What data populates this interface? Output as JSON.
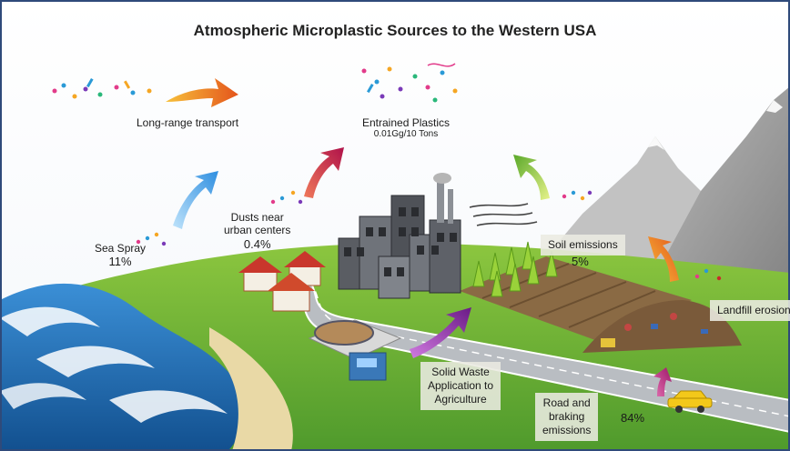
{
  "title": "Atmospheric Microplastic Sources to the Western USA",
  "labels": {
    "long_range": "Long-range transport",
    "entrained_title": "Entrained Plastics",
    "entrained_amount": "0.01Gg/10 Tons",
    "dusts_line1": "Dusts near",
    "dusts_line2": "urban centers",
    "dusts_pct": "0.4%",
    "sea_spray": "Sea Spray",
    "sea_spray_pct": "11%",
    "soil": "Soil emissions",
    "soil_pct": "5%",
    "landfill": "Landfill erosion",
    "solid_waste_line1": "Solid Waste",
    "solid_waste_line2": "Application to",
    "solid_waste_line3": "Agriculture",
    "road_line1": "Road and",
    "road_line2": "braking",
    "road_line3": "emissions",
    "road_pct": "84%"
  },
  "colors": {
    "frame": "#2f4a7a",
    "ground": "#6fb03a",
    "sea": "#1f6fb8",
    "mountain": "#9a9a9a",
    "arrow_orange": "#f08a1a",
    "arrow_blue": "#4aa3e8",
    "arrow_crimson": "#c4225a",
    "arrow_green": "#7cc23a",
    "arrow_purple": "#8a2a9a",
    "arrow_magenta": "#b0287a"
  }
}
